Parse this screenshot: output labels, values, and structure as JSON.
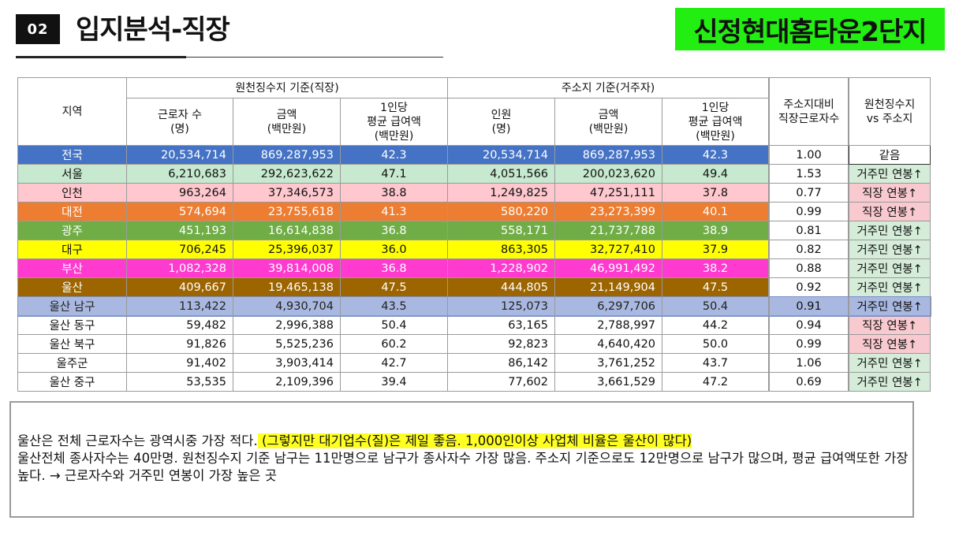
{
  "header": {
    "section_number": "02",
    "title": "입지분석-직장",
    "complex_name": "신정현대홈타운2단지"
  },
  "table": {
    "region_header": "지역",
    "group_source": "원천징수지 기준(직장)",
    "group_residence": "주소지 기준(거주자)",
    "col_workers": [
      "근로자 수",
      "(명)"
    ],
    "col_amount": [
      "금액",
      "(백만원)"
    ],
    "col_avg": [
      "1인당",
      "평균 급여액",
      "(백만원)"
    ],
    "col_people": [
      "인원",
      "(명)"
    ],
    "col_amount2": [
      "금액",
      "(백만원)"
    ],
    "col_avg2": [
      "1인당",
      "평균 급여액",
      "(백만원)"
    ],
    "col_ratio": [
      "주소지대비",
      "직장근로자수"
    ],
    "col_compare": [
      "원천징수지",
      "vs 주소지"
    ],
    "rows": [
      {
        "region": "전국",
        "workers": "20,534,714",
        "amount": "869,287,953",
        "avg": "42.3",
        "people": "20,534,714",
        "amount2": "869,287,953",
        "avg2": "42.3",
        "ratio": "1.00",
        "compare": "같음",
        "bg": "#4472c4",
        "fg": "#ffffff",
        "cmp_type": "plain"
      },
      {
        "region": "서울",
        "workers": "6,210,683",
        "amount": "292,623,622",
        "avg": "47.1",
        "people": "4,051,566",
        "amount2": "200,023,620",
        "avg2": "49.4",
        "ratio": "1.53",
        "compare": "거주민 연봉↑",
        "bg": "#c6e9cf",
        "fg": "#111111",
        "cmp_type": "green"
      },
      {
        "region": "인천",
        "workers": "963,264",
        "amount": "37,346,573",
        "avg": "38.8",
        "people": "1,249,825",
        "amount2": "47,251,111",
        "avg2": "37.8",
        "ratio": "0.77",
        "compare": "직장 연봉↑",
        "bg": "#ffc7ce",
        "fg": "#111111",
        "cmp_type": "red"
      },
      {
        "region": "대전",
        "workers": "574,694",
        "amount": "23,755,618",
        "avg": "41.3",
        "people": "580,220",
        "amount2": "23,273,399",
        "avg2": "40.1",
        "ratio": "0.99",
        "compare": "직장 연봉↑",
        "bg": "#ed7d31",
        "fg": "#ffffff",
        "cmp_type": "red"
      },
      {
        "region": "광주",
        "workers": "451,193",
        "amount": "16,614,838",
        "avg": "36.8",
        "people": "558,171",
        "amount2": "21,737,788",
        "avg2": "38.9",
        "ratio": "0.81",
        "compare": "거주민 연봉↑",
        "bg": "#70ad47",
        "fg": "#ffffff",
        "cmp_type": "green"
      },
      {
        "region": "대구",
        "workers": "706,245",
        "amount": "25,396,037",
        "avg": "36.0",
        "people": "863,305",
        "amount2": "32,727,410",
        "avg2": "37.9",
        "ratio": "0.82",
        "compare": "거주민 연봉↑",
        "bg": "#ffff00",
        "fg": "#111111",
        "cmp_type": "green"
      },
      {
        "region": "부산",
        "workers": "1,082,328",
        "amount": "39,814,008",
        "avg": "36.8",
        "people": "1,228,902",
        "amount2": "46,991,492",
        "avg2": "38.2",
        "ratio": "0.88",
        "compare": "거주민 연봉↑",
        "bg": "#ff3bcf",
        "fg": "#ffffff",
        "cmp_type": "green"
      },
      {
        "region": "울산",
        "workers": "409,667",
        "amount": "19,465,138",
        "avg": "47.5",
        "people": "444,805",
        "amount2": "21,149,904",
        "avg2": "47.5",
        "ratio": "0.92",
        "compare": "거주민 연봉↑",
        "bg": "#9c6500",
        "fg": "#ffffff",
        "cmp_type": "green"
      },
      {
        "region": "울산 남구",
        "workers": "113,422",
        "amount": "4,930,704",
        "avg": "43.5",
        "people": "125,073",
        "amount2": "6,297,706",
        "avg2": "50.4",
        "ratio": "0.91",
        "compare": "거주민 연봉↑",
        "bg": "#a9b8e0",
        "fg": "#222222",
        "cmp_type": "highlight"
      },
      {
        "region": "울산 동구",
        "workers": "59,482",
        "amount": "2,996,388",
        "avg": "50.4",
        "people": "63,165",
        "amount2": "2,788,997",
        "avg2": "44.2",
        "ratio": "0.94",
        "compare": "직장 연봉↑",
        "bg": "#ffffff",
        "fg": "#111111",
        "cmp_type": "red"
      },
      {
        "region": "울산 북구",
        "workers": "91,826",
        "amount": "5,525,236",
        "avg": "60.2",
        "people": "92,823",
        "amount2": "4,640,420",
        "avg2": "50.0",
        "ratio": "0.99",
        "compare": "직장 연봉↑",
        "bg": "#ffffff",
        "fg": "#111111",
        "cmp_type": "red"
      },
      {
        "region": "울주군",
        "workers": "91,402",
        "amount": "3,903,414",
        "avg": "42.7",
        "people": "86,142",
        "amount2": "3,761,252",
        "avg2": "43.7",
        "ratio": "1.06",
        "compare": "거주민 연봉↑",
        "bg": "#ffffff",
        "fg": "#111111",
        "cmp_type": "green"
      },
      {
        "region": "울산 중구",
        "workers": "53,535",
        "amount": "2,109,396",
        "avg": "39.4",
        "people": "77,602",
        "amount2": "3,661,529",
        "avg2": "47.2",
        "ratio": "0.69",
        "compare": "거주민 연봉↑",
        "bg": "#ffffff",
        "fg": "#111111",
        "cmp_type": "green"
      }
    ]
  },
  "note": {
    "line1_plain": "울산은 전체 근로자수는 광역시중 가장 적다.",
    "line1_highlight": " (그렇지만 대기업수(질)은 제일 좋음. 1,000인이상 사업체 비율은 울산이 많다)",
    "line2": "울산전체 종사자수는 40만명. 원천징수지 기준 남구는 11만명으로 남구가 종사자수 가장 많음. 주소지 기준으로도 12만명으로 남구가 많으며, 평균 급여액또한 가장 높다. → 근로자수와 거주민 연봉이 가장 높은 곳"
  }
}
